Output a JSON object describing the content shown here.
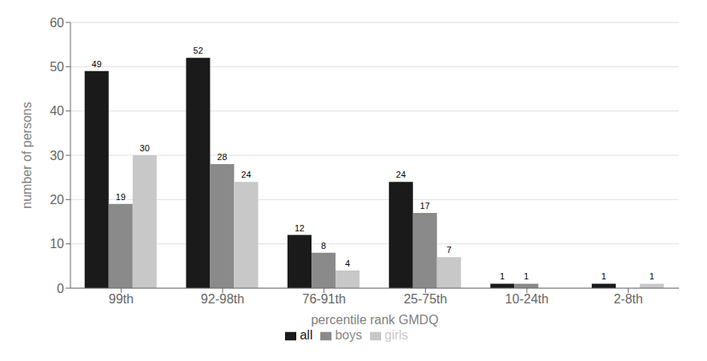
{
  "chart_data": {
    "type": "bar",
    "xlabel": "percentile rank GMDQ",
    "ylabel": "number of persons",
    "categories": [
      "99th",
      "92-98th",
      "76-91th",
      "25-75th",
      "10-24th",
      "2-8th"
    ],
    "series": [
      {
        "name": "all",
        "color": "#1a1a1a",
        "values": [
          49,
          52,
          12,
          24,
          1,
          1
        ]
      },
      {
        "name": "boys",
        "color": "#8a8a8a",
        "values": [
          19,
          28,
          8,
          17,
          1,
          0
        ]
      },
      {
        "name": "girls",
        "color": "#c8c8c8",
        "values": [
          30,
          24,
          4,
          7,
          0,
          1
        ]
      }
    ],
    "ylim": [
      0,
      60
    ],
    "yticks": [
      0,
      10,
      20,
      30,
      40,
      50,
      60
    ],
    "grid": true,
    "legend": "bottom",
    "data_labels": true
  }
}
